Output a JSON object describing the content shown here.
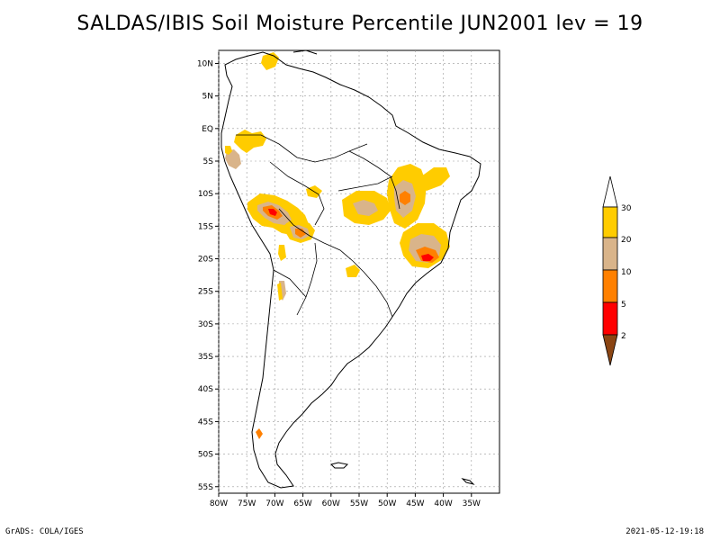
{
  "title": "SALDAS/IBIS Soil Moisture Percentile JUN2001 lev = 19",
  "footer": {
    "left": "GrADS: COLA/IGES",
    "right": "2021-05-12-19:18"
  },
  "map": {
    "lon_range": [
      -80,
      -30
    ],
    "lat_range": [
      -56,
      12
    ],
    "lon_ticks": [
      {
        "value": -80,
        "label": "80W"
      },
      {
        "value": -75,
        "label": "75W"
      },
      {
        "value": -70,
        "label": "70W"
      },
      {
        "value": -65,
        "label": "65W"
      },
      {
        "value": -60,
        "label": "60W"
      },
      {
        "value": -55,
        "label": "55W"
      },
      {
        "value": -50,
        "label": "50W"
      },
      {
        "value": -45,
        "label": "45W"
      },
      {
        "value": -40,
        "label": "40W"
      },
      {
        "value": -35,
        "label": "35W"
      }
    ],
    "lat_ticks": [
      {
        "value": 10,
        "label": "10N"
      },
      {
        "value": 5,
        "label": "5N"
      },
      {
        "value": 0,
        "label": "EQ"
      },
      {
        "value": -5,
        "label": "5S"
      },
      {
        "value": -10,
        "label": "10S"
      },
      {
        "value": -15,
        "label": "15S"
      },
      {
        "value": -20,
        "label": "20S"
      },
      {
        "value": -25,
        "label": "25S"
      },
      {
        "value": -30,
        "label": "30S"
      },
      {
        "value": -35,
        "label": "35S"
      },
      {
        "value": -40,
        "label": "40S"
      },
      {
        "value": -45,
        "label": "45S"
      },
      {
        "value": -50,
        "label": "50S"
      },
      {
        "value": -55,
        "label": "55S"
      }
    ]
  },
  "colors": {
    "gt30": "#ffffff",
    "20_30": "#ffcc00",
    "10_20": "#d9b48a",
    "5_10": "#ff8000",
    "2_5": "#ff0000",
    "lt2": "#8b4513"
  },
  "legend": {
    "labels": [
      "30",
      "20",
      "10",
      "5",
      "2"
    ]
  }
}
